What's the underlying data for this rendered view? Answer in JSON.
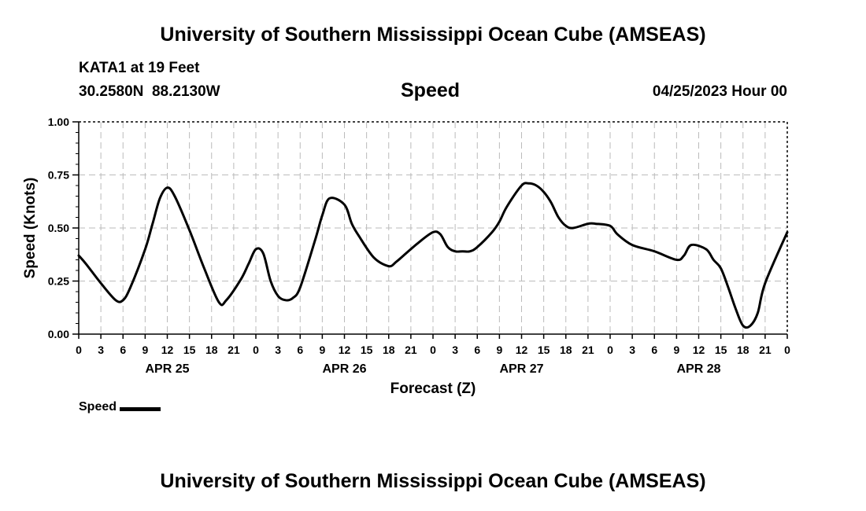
{
  "page": {
    "top_title": "University of Southern Mississippi Ocean Cube (AMSEAS)",
    "bottom_title": "University of Southern Mississippi Ocean Cube (AMSEAS)",
    "station_line": "KATA1 at 19 Feet",
    "coords_line": "30.2580N  88.2130W",
    "variable_title": "Speed",
    "timestamp": "04/25/2023 Hour 00",
    "legend_label": "Speed"
  },
  "colors": {
    "line": "#000000",
    "grid": "#bbbbbb",
    "background": "#ffffff"
  },
  "chart_data": {
    "type": "line",
    "title": "Speed",
    "xlabel": "Forecast (Z)",
    "ylabel": "Speed (Knots)",
    "xlim": [
      0,
      96
    ],
    "ylim": [
      0,
      1
    ],
    "yticks": [
      0,
      0.25,
      0.5,
      0.75,
      1.0
    ],
    "ytick_labels": [
      "0.00",
      "0.25",
      "0.50",
      "0.75",
      "1.00"
    ],
    "xticks": [
      0,
      3,
      6,
      9,
      12,
      15,
      18,
      21,
      24,
      27,
      30,
      33,
      36,
      39,
      42,
      45,
      48,
      51,
      54,
      57,
      60,
      63,
      66,
      69,
      72,
      75,
      78,
      81,
      84,
      87,
      90,
      93,
      96
    ],
    "xtick_labels": [
      "0",
      "3",
      "6",
      "9",
      "12",
      "15",
      "18",
      "21",
      "0",
      "3",
      "6",
      "9",
      "12",
      "15",
      "18",
      "21",
      "0",
      "3",
      "6",
      "9",
      "12",
      "15",
      "18",
      "21",
      "0",
      "3",
      "6",
      "9",
      "12",
      "15",
      "18",
      "21",
      "0"
    ],
    "day_labels": [
      {
        "x": 12,
        "label": "APR 25"
      },
      {
        "x": 36,
        "label": "APR 26"
      },
      {
        "x": 60,
        "label": "APR 27"
      },
      {
        "x": 84,
        "label": "APR 28"
      }
    ],
    "grid": true,
    "legend": "bottom-left",
    "series": [
      {
        "name": "Speed",
        "x": [
          0,
          1,
          3,
          5,
          6,
          7,
          9,
          10,
          11,
          12,
          13,
          15,
          17,
          19,
          20,
          22,
          23,
          24,
          25,
          26,
          27,
          28,
          29,
          30,
          32,
          33,
          34,
          36,
          37,
          38,
          40,
          42,
          43,
          44,
          46,
          48,
          49,
          50,
          51,
          52,
          53,
          54,
          56,
          57,
          58,
          60,
          61,
          62,
          63,
          64,
          65,
          66,
          67,
          69,
          70,
          72,
          73,
          75,
          78,
          81,
          82,
          83,
          85,
          86,
          87,
          88,
          89,
          90,
          91,
          92,
          93,
          96
        ],
        "values": [
          0.37,
          0.33,
          0.24,
          0.16,
          0.16,
          0.22,
          0.4,
          0.52,
          0.64,
          0.69,
          0.65,
          0.49,
          0.31,
          0.15,
          0.16,
          0.26,
          0.33,
          0.4,
          0.38,
          0.25,
          0.18,
          0.16,
          0.17,
          0.22,
          0.44,
          0.56,
          0.64,
          0.61,
          0.52,
          0.46,
          0.36,
          0.32,
          0.34,
          0.37,
          0.43,
          0.48,
          0.47,
          0.41,
          0.39,
          0.39,
          0.39,
          0.41,
          0.48,
          0.53,
          0.6,
          0.7,
          0.71,
          0.7,
          0.67,
          0.62,
          0.55,
          0.51,
          0.5,
          0.52,
          0.52,
          0.51,
          0.47,
          0.42,
          0.39,
          0.35,
          0.37,
          0.42,
          0.4,
          0.35,
          0.31,
          0.22,
          0.12,
          0.04,
          0.04,
          0.1,
          0.24,
          0.48
        ]
      }
    ]
  }
}
